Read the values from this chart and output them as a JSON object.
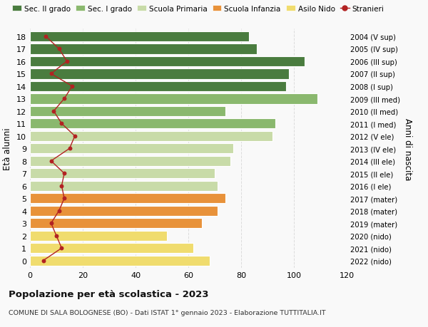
{
  "ages": [
    0,
    1,
    2,
    3,
    4,
    5,
    6,
    7,
    8,
    9,
    10,
    11,
    12,
    13,
    14,
    15,
    16,
    17,
    18
  ],
  "bar_values": [
    68,
    62,
    52,
    65,
    71,
    74,
    71,
    70,
    76,
    77,
    92,
    93,
    74,
    109,
    97,
    98,
    104,
    86,
    83
  ],
  "bar_colors": [
    "#f0dc6e",
    "#f0dc6e",
    "#f0dc6e",
    "#e8923a",
    "#e8923a",
    "#e8923a",
    "#c8dba8",
    "#c8dba8",
    "#c8dba8",
    "#c8dba8",
    "#c8dba8",
    "#8ab86e",
    "#8ab86e",
    "#8ab86e",
    "#4a7c3f",
    "#4a7c3f",
    "#4a7c3f",
    "#4a7c3f",
    "#4a7c3f"
  ],
  "stranieri_values": [
    5,
    12,
    10,
    8,
    11,
    13,
    12,
    13,
    8,
    15,
    17,
    12,
    9,
    13,
    16,
    8,
    14,
    11,
    6
  ],
  "right_labels": [
    "2022 (nido)",
    "2021 (nido)",
    "2020 (nido)",
    "2019 (mater)",
    "2018 (mater)",
    "2017 (mater)",
    "2016 (I ele)",
    "2015 (II ele)",
    "2014 (III ele)",
    "2013 (IV ele)",
    "2012 (V ele)",
    "2011 (I med)",
    "2010 (II med)",
    "2009 (III med)",
    "2008 (I sup)",
    "2007 (II sup)",
    "2006 (III sup)",
    "2005 (IV sup)",
    "2004 (V sup)"
  ],
  "ylabel_right": "Anni di nascita",
  "xlim": [
    0,
    120
  ],
  "xticks": [
    0,
    20,
    40,
    60,
    80,
    100,
    120
  ],
  "title": "Popolazione per età scolastica - 2023",
  "subtitle": "COMUNE DI SALA BOLOGNESE (BO) - Dati ISTAT 1° gennaio 2023 - Elaborazione TUTTITALIA.IT",
  "legend_labels": [
    "Sec. II grado",
    "Sec. I grado",
    "Scuola Primaria",
    "Scuola Infanzia",
    "Asilo Nido",
    "Stranieri"
  ],
  "legend_colors": [
    "#4a7c3f",
    "#8ab86e",
    "#c8dba8",
    "#e8923a",
    "#f0dc6e",
    "#b22222"
  ],
  "bg_color": "#f9f9f9",
  "grid_color": "#dddddd",
  "bar_height": 0.82
}
